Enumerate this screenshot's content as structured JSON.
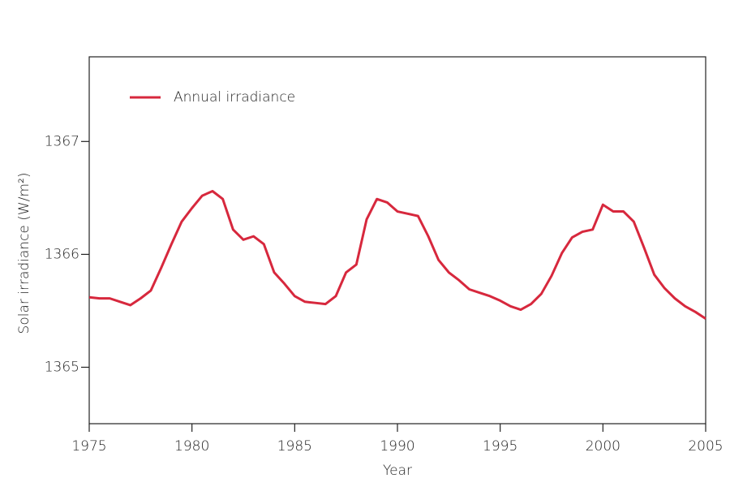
{
  "chart_data": {
    "type": "line",
    "xlabel": "Year",
    "ylabel": "Solar irradiance (W/m²)",
    "x": [
      1975,
      1975.5,
      1976,
      1976.5,
      1977,
      1977.5,
      1978,
      1978.5,
      1979,
      1979.5,
      1980,
      1980.5,
      1981,
      1981.5,
      1982,
      1982.5,
      1983,
      1983.5,
      1984,
      1984.5,
      1985,
      1985.5,
      1986,
      1986.5,
      1987,
      1987.5,
      1988,
      1988.5,
      1989,
      1989.5,
      1990,
      1990.5,
      1991,
      1991.5,
      1992,
      1992.5,
      1993,
      1993.5,
      1994,
      1994.5,
      1995,
      1995.5,
      1996,
      1996.5,
      1997,
      1997.5,
      1998,
      1998.5,
      1999,
      1999.5,
      2000,
      2000.5,
      2001,
      2001.5,
      2002,
      2002.5,
      2003,
      2003.5,
      2004,
      2004.5,
      2005
    ],
    "series": [
      {
        "name": "Annual irradiance",
        "color": "#d7283d",
        "values": [
          1365.62,
          1365.61,
          1365.61,
          1365.58,
          1365.55,
          1365.61,
          1365.68,
          1365.88,
          1366.09,
          1366.29,
          1366.41,
          1366.52,
          1366.56,
          1366.49,
          1366.22,
          1366.13,
          1366.16,
          1366.09,
          1365.84,
          1365.74,
          1365.63,
          1365.58,
          1365.57,
          1365.56,
          1365.63,
          1365.84,
          1365.91,
          1366.31,
          1366.49,
          1366.46,
          1366.38,
          1366.36,
          1366.34,
          1366.16,
          1365.95,
          1365.84,
          1365.77,
          1365.69,
          1365.66,
          1365.63,
          1365.59,
          1365.54,
          1365.51,
          1365.56,
          1365.65,
          1365.81,
          1366.01,
          1366.15,
          1366.2,
          1366.22,
          1366.44,
          1366.38,
          1366.38,
          1366.29,
          1366.06,
          1365.82,
          1365.7,
          1365.61,
          1365.54,
          1365.49,
          1365.43
        ]
      }
    ],
    "xlim": [
      1975,
      2005
    ],
    "xticks": [
      1975,
      1980,
      1985,
      1990,
      1995,
      2000,
      2005
    ],
    "ylim": [
      1364.5,
      1367.75
    ],
    "yticks": [
      1365,
      1366,
      1367
    ],
    "legend": "upper left",
    "grid": false
  }
}
